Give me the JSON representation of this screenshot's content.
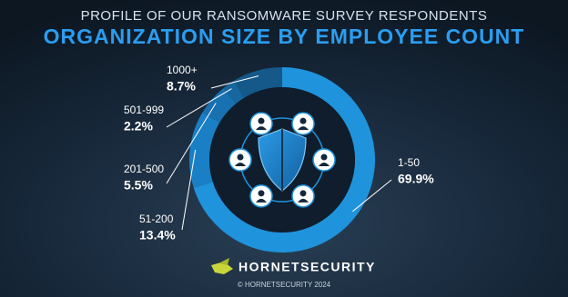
{
  "chart_data": {
    "type": "pie",
    "subtitle": "PROFILE OF OUR RANSOMWARE SURVEY RESPONDENTS",
    "title": "ORGANIZATION SIZE BY EMPLOYEE COUNT",
    "categories": [
      "1-50",
      "51-200",
      "201-500",
      "501-999",
      "1000+"
    ],
    "values": [
      69.9,
      13.4,
      5.5,
      2.2,
      8.7
    ],
    "value_labels": [
      "69.9%",
      "13.4%",
      "5.5%",
      "2.2%",
      "8.7%"
    ],
    "colors": [
      "#1f93dc",
      "#1a7fc4",
      "#1871b0",
      "#16679f",
      "#14598a"
    ],
    "brand": "HORNETSECURITY",
    "copyright": "© HORNETSECURITY 2024"
  }
}
